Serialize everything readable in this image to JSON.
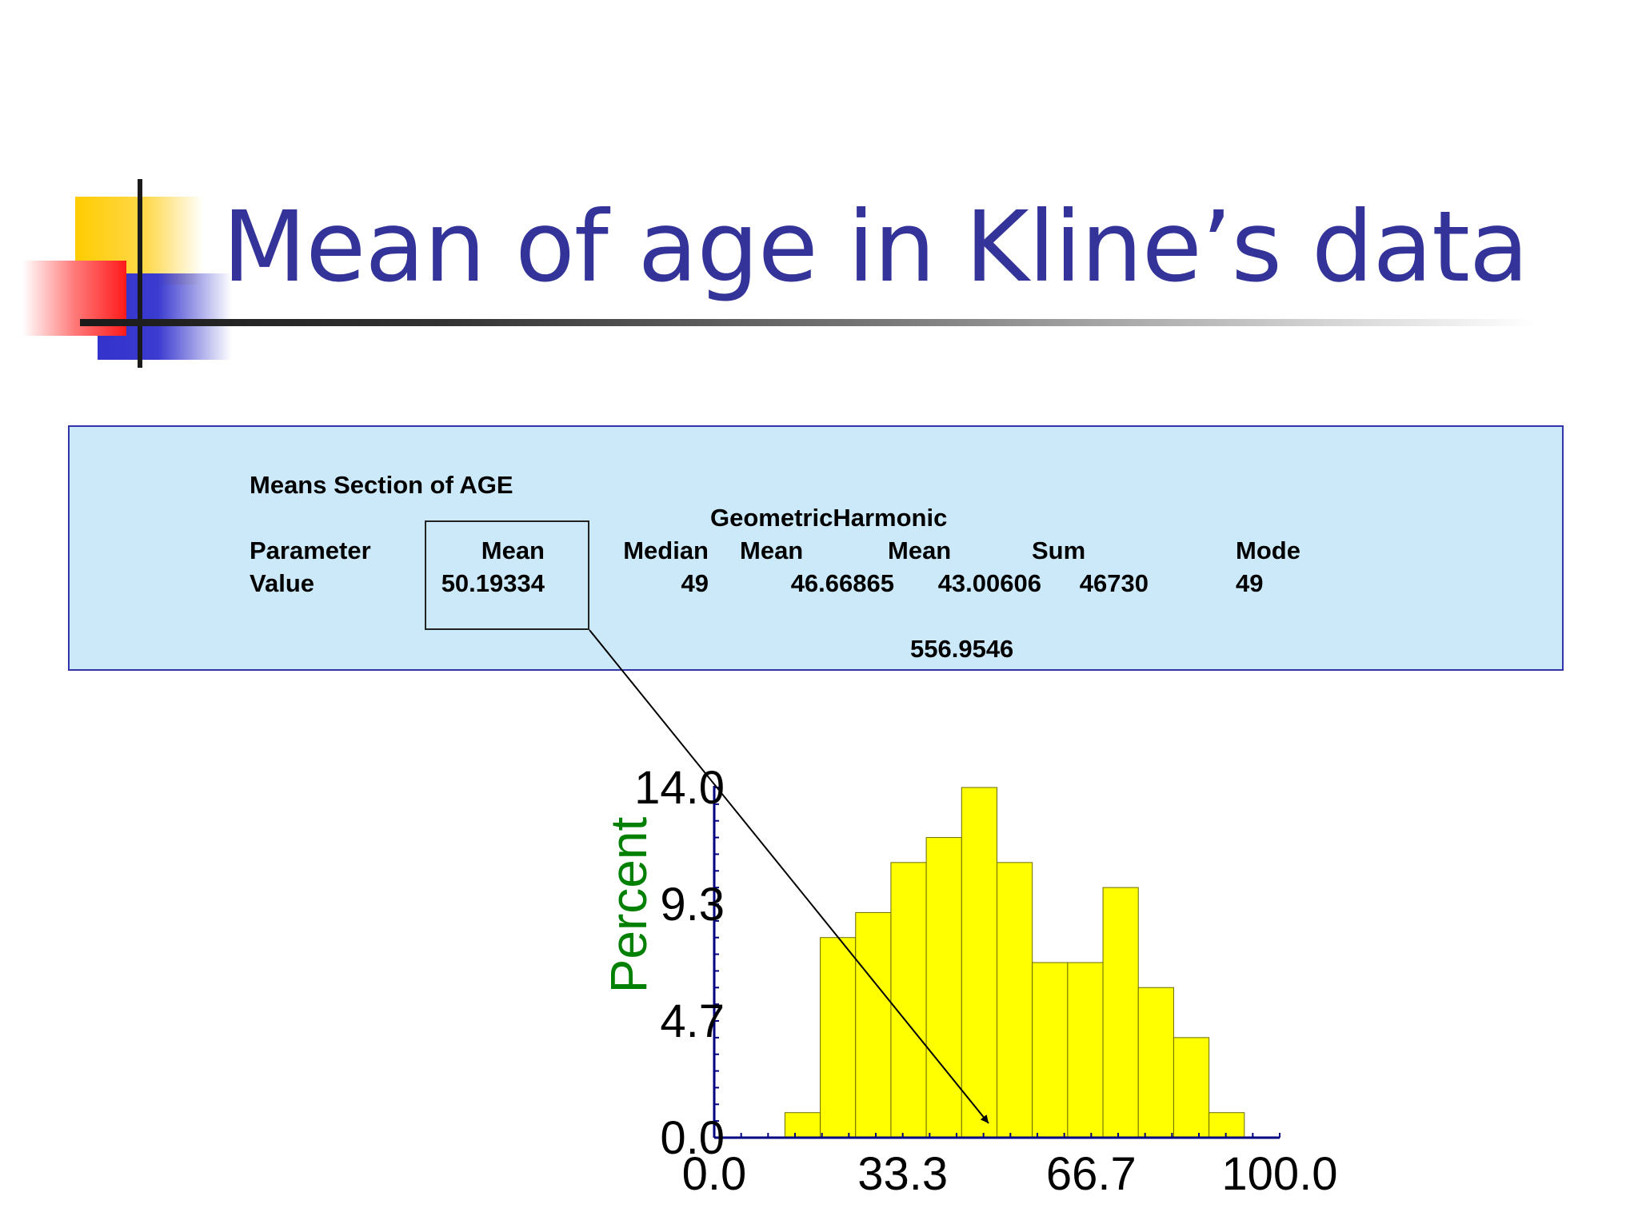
{
  "slide": {
    "title": "Mean of age in Kline’s data"
  },
  "means_section": {
    "heading": "Means Section of AGE",
    "group_header": "GeometricHarmonic",
    "row_labels": [
      "Parameter",
      "Value"
    ],
    "columns": [
      {
        "header": "Mean",
        "value": "50.19334"
      },
      {
        "header": "Median",
        "value": "49"
      },
      {
        "header": "Mean",
        "value": "46.66865"
      },
      {
        "header": "Mean",
        "value": "43.00606"
      },
      {
        "header": "Sum",
        "value": "46730"
      },
      {
        "header": "Mode",
        "value": "49"
      }
    ],
    "extra_value": "556.9546"
  },
  "colors": {
    "title": "#333399",
    "panel": "#cce9fa",
    "bar_fill": "#ffff00",
    "axis": "#000080",
    "ylabel": "#008000"
  },
  "chart_data": {
    "type": "bar",
    "title": "",
    "xlabel": "",
    "ylabel": "Percent",
    "xlim": [
      0,
      100
    ],
    "ylim": [
      0,
      14
    ],
    "x_ticks": [
      "0.0",
      "33.3",
      "66.7",
      "100.0"
    ],
    "y_ticks": [
      "0.0",
      "4.7",
      "9.3",
      "14.0"
    ],
    "bin_width": 6.25,
    "bin_starts": [
      12.5,
      18.75,
      25,
      31.25,
      37.5,
      43.75,
      50,
      56.25,
      62.5,
      68.75,
      75,
      81.25,
      87.5
    ],
    "values": [
      1.0,
      8.0,
      9.0,
      11.0,
      12.0,
      14.0,
      11.0,
      7.0,
      7.0,
      10.0,
      6.0,
      4.0,
      1.0
    ],
    "annotation": {
      "label": "Mean",
      "value": 50.19334
    }
  }
}
